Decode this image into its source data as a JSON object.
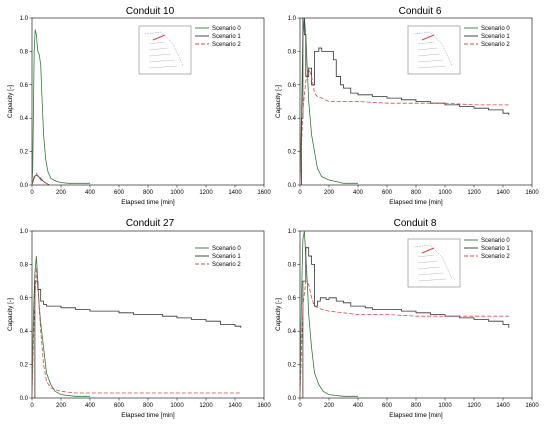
{
  "chart_data": [
    {
      "type": "line",
      "title": "Conduit 10",
      "xlabel": "Elapsed time [min]",
      "ylabel": "Capacity [-]",
      "xlim": [
        0,
        1600
      ],
      "ylim": [
        0,
        1.0
      ],
      "xticks": [
        "0",
        "200",
        "400",
        "600",
        "800",
        "1000",
        "1200",
        "1400",
        "1600"
      ],
      "yticks": [
        "0.0",
        "0.2",
        "0.4",
        "0.6",
        "0.8",
        "1.0"
      ],
      "legend_position": "top-right",
      "inset_map": true,
      "series": [
        {
          "name": "Scenario 0",
          "color": "#2e7d32",
          "dash": "",
          "step": false,
          "x": [
            0,
            5,
            10,
            15,
            22,
            30,
            40,
            50,
            60,
            70,
            80,
            95,
            110,
            130,
            150,
            175,
            200,
            250,
            300,
            400
          ],
          "y": [
            0,
            0.1,
            0.45,
            0.8,
            0.93,
            0.9,
            0.8,
            0.78,
            0.72,
            0.5,
            0.3,
            0.15,
            0.08,
            0.04,
            0.03,
            0.02,
            0.015,
            0.01,
            0.01,
            0.01
          ]
        },
        {
          "name": "Scenario 1",
          "color": "#333333",
          "dash": "",
          "step": false,
          "x": [
            0,
            15,
            30,
            45,
            60,
            80,
            100,
            120
          ],
          "y": [
            0,
            0.05,
            0.06,
            0.05,
            0.04,
            0.02,
            0.01,
            0
          ]
        },
        {
          "name": "Scenario 2",
          "color": "#d94848",
          "dash": "4,2",
          "step": false,
          "x": [
            0,
            15,
            30,
            45,
            60,
            80,
            100,
            120
          ],
          "y": [
            0,
            0.04,
            0.07,
            0.05,
            0.03,
            0.02,
            0.01,
            0
          ]
        }
      ]
    },
    {
      "type": "line",
      "title": "Conduit 6",
      "xlabel": "Elapsed time [min]",
      "ylabel": "Capacity [-]",
      "xlim": [
        0,
        1600
      ],
      "ylim": [
        0,
        1.0
      ],
      "xticks": [
        "0",
        "200",
        "400",
        "600",
        "800",
        "1000",
        "1200",
        "1400",
        "1600"
      ],
      "yticks": [
        "0.0",
        "0.2",
        "0.4",
        "0.6",
        "0.8",
        "1.0"
      ],
      "legend_position": "top-right",
      "inset_map": true,
      "series": [
        {
          "name": "Scenario 0",
          "color": "#2e7d32",
          "dash": "",
          "step": false,
          "x": [
            0,
            10,
            20,
            30,
            40,
            50,
            60,
            80,
            100,
            120,
            150,
            200,
            250,
            300,
            400
          ],
          "y": [
            0,
            0.4,
            0.9,
            1.0,
            0.9,
            0.7,
            0.5,
            0.3,
            0.2,
            0.1,
            0.05,
            0.03,
            0.02,
            0.01,
            0.01
          ]
        },
        {
          "name": "Scenario 1",
          "color": "#333333",
          "dash": "",
          "step": true,
          "x": [
            0,
            10,
            20,
            30,
            40,
            60,
            80,
            100,
            130,
            150,
            200,
            230,
            250,
            280,
            300,
            350,
            400,
            500,
            600,
            700,
            800,
            900,
            1000,
            1100,
            1200,
            1300,
            1400,
            1440
          ],
          "y": [
            0,
            0.4,
            1.0,
            0.9,
            0.65,
            0.7,
            0.6,
            0.8,
            0.82,
            0.8,
            0.8,
            0.75,
            0.65,
            0.6,
            0.58,
            0.55,
            0.54,
            0.53,
            0.52,
            0.51,
            0.5,
            0.49,
            0.48,
            0.47,
            0.46,
            0.45,
            0.43,
            0.42
          ]
        },
        {
          "name": "Scenario 2",
          "color": "#d94848",
          "dash": "4,2",
          "step": false,
          "x": [
            0,
            20,
            40,
            60,
            80,
            100,
            120,
            150,
            200,
            300,
            400,
            600,
            800,
            1000,
            1200,
            1440
          ],
          "y": [
            0,
            0.45,
            0.62,
            0.7,
            0.65,
            0.55,
            0.53,
            0.52,
            0.5,
            0.5,
            0.5,
            0.49,
            0.49,
            0.49,
            0.48,
            0.48
          ]
        }
      ]
    },
    {
      "type": "line",
      "title": "Conduit 27",
      "xlabel": "Elapsed time [min]",
      "ylabel": "Capacity [-]",
      "xlim": [
        0,
        1600
      ],
      "ylim": [
        0,
        1.0
      ],
      "xticks": [
        "0",
        "200",
        "400",
        "600",
        "800",
        "1000",
        "1200",
        "1400",
        "1600"
      ],
      "yticks": [
        "0.0",
        "0.2",
        "0.4",
        "0.6",
        "0.8",
        "1.0"
      ],
      "legend_position": "top-right",
      "inset_map": false,
      "series": [
        {
          "name": "Scenario 0",
          "color": "#2e7d32",
          "dash": "",
          "step": false,
          "x": [
            0,
            10,
            20,
            30,
            40,
            50,
            60,
            80,
            100,
            130,
            160,
            200,
            300,
            400
          ],
          "y": [
            0,
            0.5,
            0.75,
            0.85,
            0.7,
            0.55,
            0.45,
            0.3,
            0.15,
            0.08,
            0.04,
            0.02,
            0.01,
            0.01
          ]
        },
        {
          "name": "Scenario 1",
          "color": "#333333",
          "dash": "",
          "step": true,
          "x": [
            0,
            20,
            40,
            60,
            80,
            100,
            200,
            300,
            400,
            500,
            600,
            700,
            800,
            900,
            1000,
            1100,
            1200,
            1300,
            1400,
            1440
          ],
          "y": [
            0,
            0.7,
            0.65,
            0.58,
            0.56,
            0.55,
            0.54,
            0.53,
            0.52,
            0.52,
            0.51,
            0.5,
            0.5,
            0.49,
            0.48,
            0.47,
            0.46,
            0.44,
            0.43,
            0.42
          ]
        },
        {
          "name": "Scenario 2",
          "color": "#d94848",
          "dash": "4,2",
          "step": false,
          "x": [
            0,
            15,
            30,
            45,
            60,
            80,
            100,
            130,
            160,
            200,
            300,
            600,
            1000,
            1200,
            1440
          ],
          "y": [
            0,
            0.5,
            0.78,
            0.6,
            0.4,
            0.2,
            0.1,
            0.06,
            0.05,
            0.04,
            0.03,
            0.03,
            0.03,
            0.03,
            0.03
          ]
        }
      ]
    },
    {
      "type": "line",
      "title": "Conduit 8",
      "xlabel": "Elapsed time [min]",
      "ylabel": "Capacity [-]",
      "xlim": [
        0,
        1600
      ],
      "ylim": [
        0,
        1.0
      ],
      "xticks": [
        "0",
        "200",
        "400",
        "600",
        "800",
        "1000",
        "1200",
        "1400",
        "1600"
      ],
      "yticks": [
        "0.0",
        "0.2",
        "0.4",
        "0.6",
        "0.8",
        "1.0"
      ],
      "legend_position": "top-right",
      "inset_map": true,
      "series": [
        {
          "name": "Scenario 0",
          "color": "#2e7d32",
          "dash": "",
          "step": false,
          "x": [
            0,
            10,
            20,
            30,
            40,
            50,
            60,
            80,
            100,
            130,
            160,
            200,
            300,
            400
          ],
          "y": [
            0,
            0.6,
            0.95,
            1.0,
            0.85,
            0.7,
            0.5,
            0.3,
            0.15,
            0.08,
            0.04,
            0.02,
            0.01,
            0.01
          ]
        },
        {
          "name": "Scenario 1",
          "color": "#333333",
          "dash": "",
          "step": true,
          "x": [
            0,
            20,
            40,
            60,
            80,
            100,
            120,
            140,
            160,
            180,
            200,
            250,
            300,
            350,
            400,
            450,
            500,
            600,
            700,
            800,
            900,
            1000,
            1100,
            1200,
            1300,
            1400,
            1440
          ],
          "y": [
            0,
            0.7,
            0.9,
            0.85,
            0.8,
            0.55,
            0.58,
            0.6,
            0.6,
            0.59,
            0.6,
            0.58,
            0.57,
            0.55,
            0.55,
            0.54,
            0.53,
            0.53,
            0.52,
            0.51,
            0.5,
            0.49,
            0.48,
            0.47,
            0.46,
            0.44,
            0.42
          ]
        },
        {
          "name": "Scenario 2",
          "color": "#d94848",
          "dash": "4,2",
          "step": false,
          "x": [
            0,
            20,
            40,
            60,
            80,
            100,
            150,
            200,
            300,
            400,
            600,
            800,
            1000,
            1200,
            1440
          ],
          "y": [
            0,
            0.55,
            0.7,
            0.68,
            0.6,
            0.55,
            0.53,
            0.52,
            0.51,
            0.5,
            0.5,
            0.49,
            0.49,
            0.49,
            0.49
          ]
        }
      ]
    }
  ]
}
